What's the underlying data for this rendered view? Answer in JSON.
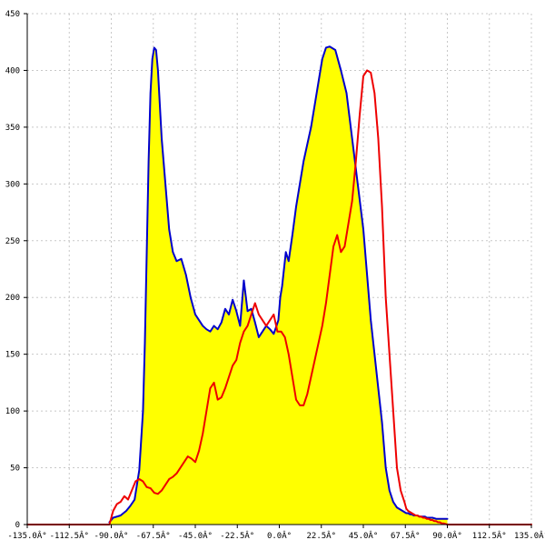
{
  "chart_data": {
    "type": "area",
    "xlim": [
      -135,
      135
    ],
    "ylim": [
      0,
      450
    ],
    "grid": true,
    "x_ticks": [
      {
        "value": -135,
        "label": "-135.0Â°"
      },
      {
        "value": -112.5,
        "label": "-112.5Â°"
      },
      {
        "value": -90,
        "label": "-90.0Â°"
      },
      {
        "value": -67.5,
        "label": "-67.5Â°"
      },
      {
        "value": -45,
        "label": "-45.0Â°"
      },
      {
        "value": -22.5,
        "label": "-22.5Â°"
      },
      {
        "value": 0,
        "label": "0.0Â°"
      },
      {
        "value": 22.5,
        "label": "22.5Â°"
      },
      {
        "value": 45,
        "label": "45.0Â°"
      },
      {
        "value": 67.5,
        "label": "67.5Â°"
      },
      {
        "value": 90,
        "label": "90.0Â°"
      },
      {
        "value": 112.5,
        "label": "112.5Â°"
      },
      {
        "value": 135,
        "label": "135.0Â°"
      }
    ],
    "y_ticks": [
      {
        "value": 0,
        "label": "0"
      },
      {
        "value": 50,
        "label": "50"
      },
      {
        "value": 100,
        "label": "100"
      },
      {
        "value": 150,
        "label": "150"
      },
      {
        "value": 200,
        "label": "200"
      },
      {
        "value": 250,
        "label": "250"
      },
      {
        "value": 300,
        "label": "300"
      },
      {
        "value": 350,
        "label": "350"
      },
      {
        "value": 400,
        "label": "400"
      },
      {
        "value": 450,
        "label": "450"
      }
    ],
    "series": [
      {
        "color": "#0000cc",
        "fill": "#ffff00",
        "filled": true,
        "x": [
          -91,
          -89,
          -85,
          -82,
          -80,
          -77.5,
          -75,
          -73,
          -72,
          -71,
          -70,
          -69,
          -68,
          -67,
          -66,
          -65,
          -64,
          -63,
          -62,
          -61,
          -60,
          -59,
          -57,
          -55,
          -52.5,
          -50,
          -47.5,
          -45,
          -43,
          -41,
          -39,
          -37,
          -35,
          -33,
          -31,
          -29,
          -27,
          -25,
          -23,
          -21,
          -19,
          -17,
          -15,
          -13,
          -11,
          -9,
          -7,
          -5,
          -3,
          -1.5,
          -0.5,
          0,
          0.5,
          1.5,
          2.5,
          3.5,
          5,
          7,
          9,
          11,
          13,
          15,
          17,
          19,
          21,
          23,
          25,
          27,
          30,
          33,
          36,
          39,
          42,
          45,
          47,
          49,
          51,
          53,
          55,
          57,
          59,
          61,
          63,
          65,
          66,
          67,
          68,
          69,
          70,
          71,
          72,
          73,
          74,
          75,
          76,
          77,
          78,
          79,
          80,
          81,
          82,
          84,
          86,
          88,
          90
        ],
        "values": [
          2,
          6,
          8,
          12,
          16,
          22,
          48,
          100,
          160,
          240,
          320,
          380,
          410,
          420,
          418,
          400,
          370,
          340,
          320,
          300,
          280,
          260,
          240,
          232,
          234,
          220,
          200,
          185,
          180,
          175,
          172,
          170,
          175,
          172,
          178,
          190,
          185,
          198,
          188,
          175,
          215,
          188,
          190,
          178,
          165,
          170,
          175,
          172,
          168,
          175,
          180,
          190,
          200,
          210,
          225,
          240,
          232,
          255,
          280,
          300,
          320,
          335,
          350,
          370,
          390,
          410,
          420,
          421,
          418,
          400,
          380,
          340,
          300,
          260,
          220,
          180,
          150,
          120,
          90,
          50,
          30,
          20,
          15,
          13,
          12,
          11,
          10,
          10,
          9,
          9,
          8,
          8,
          8,
          7,
          7,
          7,
          7,
          6,
          6,
          6,
          6,
          5,
          5,
          5,
          5
        ]
      },
      {
        "color": "#ee0000",
        "filled": false,
        "x": [
          -135,
          -91,
          -89,
          -87,
          -85,
          -83,
          -81,
          -79,
          -77,
          -75,
          -73,
          -71,
          -69,
          -67,
          -65,
          -63,
          -61,
          -59,
          -57,
          -55,
          -53,
          -51,
          -49,
          -47,
          -45,
          -43,
          -41,
          -39,
          -37,
          -35,
          -33,
          -31,
          -29,
          -27,
          -25,
          -23,
          -21,
          -19,
          -17,
          -15,
          -13,
          -11,
          -9,
          -7,
          -5,
          -3,
          -1,
          1,
          3,
          5,
          7,
          9,
          11,
          13,
          15,
          17,
          19,
          21,
          23,
          25,
          27,
          29,
          31,
          33,
          35,
          37,
          39,
          41,
          43,
          45,
          47,
          49,
          51,
          53,
          55,
          57,
          59,
          61,
          63,
          65,
          67,
          68,
          69,
          70,
          71,
          72,
          73,
          74,
          75,
          76,
          77,
          78,
          79,
          80,
          81,
          82,
          83,
          84,
          85,
          86,
          87,
          88,
          90,
          92,
          135
        ],
        "values": [
          0,
          0,
          12,
          18,
          20,
          25,
          22,
          30,
          38,
          40,
          38,
          33,
          32,
          28,
          27,
          30,
          35,
          40,
          42,
          45,
          50,
          55,
          60,
          58,
          55,
          65,
          80,
          100,
          120,
          125,
          110,
          112,
          120,
          130,
          140,
          145,
          160,
          170,
          175,
          185,
          195,
          185,
          180,
          175,
          180,
          185,
          170,
          170,
          165,
          150,
          130,
          110,
          105,
          105,
          115,
          130,
          145,
          160,
          175,
          195,
          220,
          245,
          255,
          240,
          245,
          265,
          285,
          320,
          360,
          395,
          400,
          398,
          380,
          340,
          280,
          200,
          150,
          100,
          50,
          30,
          20,
          14,
          12,
          11,
          10,
          9,
          8,
          8,
          7,
          7,
          6,
          6,
          5,
          5,
          4,
          4,
          3,
          3,
          2,
          2,
          1,
          1,
          0,
          0,
          0
        ]
      }
    ]
  }
}
